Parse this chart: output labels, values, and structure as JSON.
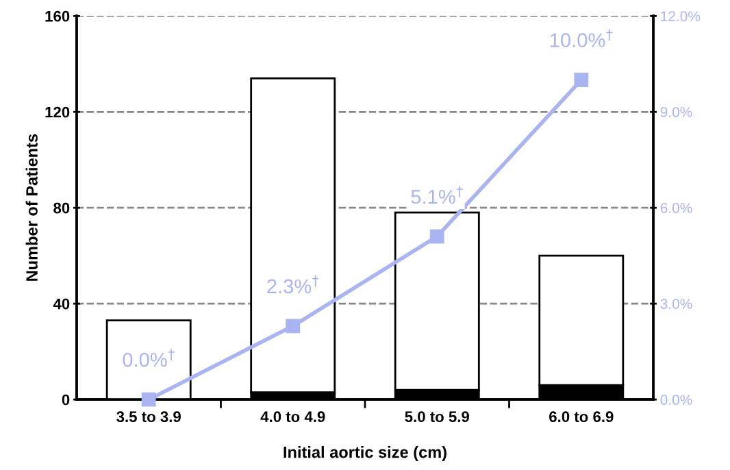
{
  "chart_data": {
    "type": "bar",
    "stacked": true,
    "xlabel": "Initial aortic size (cm)",
    "ylabel": "Number of Patients",
    "categories": [
      "3.5 to 3.9",
      "4.0 to 4.9",
      "5.0 to 5.9",
      "6.0 to 6.9"
    ],
    "series": [
      {
        "color": "#000000",
        "values": [
          0,
          3,
          4,
          6
        ]
      },
      {
        "color": "#ffffff",
        "values": [
          33,
          131,
          74,
          54
        ]
      },
      {
        "type": "line",
        "axis": "y2",
        "color": "#aab4f0",
        "marker": "square",
        "values": [
          0.0,
          2.3,
          5.1,
          10.0
        ],
        "value_labels": [
          "0.0%$^{†}$",
          "2.3%$^{†}$",
          "5.1%$^{†}$",
          "10.0%$^{†}$"
        ]
      }
    ],
    "ylim": [
      0,
      160
    ],
    "yticks": [
      0,
      40,
      80,
      120,
      160
    ],
    "y2lim": [
      0,
      12
    ],
    "y2ticks": [
      {
        "value": 0,
        "label": "0.0%"
      },
      {
        "value": 3,
        "label": "3.0%"
      },
      {
        "value": 6,
        "label": "6.0%"
      },
      {
        "value": 9,
        "label": "9.0%"
      },
      {
        "value": 12,
        "label": "12.0%"
      }
    ],
    "grid": "y",
    "legend": false
  }
}
